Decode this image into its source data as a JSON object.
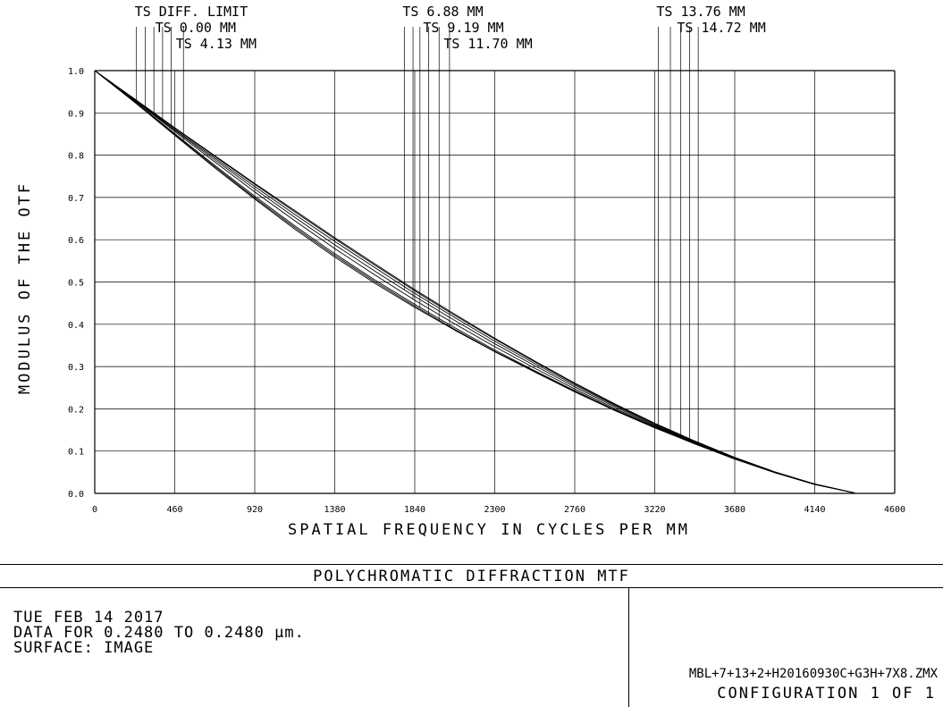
{
  "chart_data": {
    "type": "line",
    "title": "POLYCHROMATIC DIFFRACTION MTF",
    "xlabel": "SPATIAL FREQUENCY IN CYCLES PER MM",
    "ylabel": "MODULUS OF THE OTF",
    "xlim": [
      0,
      4600
    ],
    "ylim": [
      0,
      1.0
    ],
    "xticks": [
      "0",
      "460",
      "920",
      "1380",
      "1840",
      "2300",
      "2760",
      "3220",
      "3680",
      "4140",
      "4600"
    ],
    "yticks": [
      "0.0",
      "0.1",
      "0.2",
      "0.3",
      "0.4",
      "0.5",
      "0.6",
      "0.7",
      "0.8",
      "0.9",
      "1.0"
    ],
    "grid": true,
    "x": [
      0,
      230,
      460,
      690,
      920,
      1150,
      1380,
      1610,
      1840,
      2070,
      2300,
      2530,
      2760,
      2990,
      3220,
      3450,
      3680,
      3910,
      4140,
      4370
    ],
    "series": [
      {
        "name": "TS DIFF. LIMIT",
        "values": [
          1.0,
          0.933,
          0.865,
          0.799,
          0.733,
          0.669,
          0.605,
          0.543,
          0.482,
          0.424,
          0.367,
          0.313,
          0.261,
          0.212,
          0.166,
          0.124,
          0.085,
          0.051,
          0.022,
          0.001
        ]
      },
      {
        "name": "TS 0.00 MM",
        "values": [
          1.0,
          0.932,
          0.864,
          0.797,
          0.731,
          0.666,
          0.602,
          0.54,
          0.479,
          0.421,
          0.365,
          0.311,
          0.259,
          0.21,
          0.165,
          0.123,
          0.085,
          0.051,
          0.022,
          0.001
        ]
      },
      {
        "name": "TS 4.13 MM",
        "values": [
          1.0,
          0.931,
          0.861,
          0.793,
          0.726,
          0.66,
          0.596,
          0.534,
          0.473,
          0.416,
          0.36,
          0.307,
          0.256,
          0.208,
          0.163,
          0.122,
          0.084,
          0.05,
          0.022,
          0.001
        ]
      },
      {
        "name": "TS 6.88 MM",
        "values": [
          1.0,
          0.93,
          0.859,
          0.789,
          0.72,
          0.653,
          0.588,
          0.526,
          0.466,
          0.409,
          0.354,
          0.302,
          0.252,
          0.205,
          0.161,
          0.121,
          0.084,
          0.05,
          0.022,
          0.001
        ]
      },
      {
        "name": "TS 9.19 MM",
        "values": [
          1.0,
          0.929,
          0.856,
          0.784,
          0.713,
          0.645,
          0.579,
          0.517,
          0.457,
          0.401,
          0.347,
          0.296,
          0.247,
          0.201,
          0.159,
          0.12,
          0.083,
          0.05,
          0.022,
          0.001
        ]
      },
      {
        "name": "TS 11.70 MM",
        "values": [
          1.0,
          0.927,
          0.851,
          0.776,
          0.703,
          0.633,
          0.567,
          0.505,
          0.447,
          0.392,
          0.339,
          0.29,
          0.243,
          0.198,
          0.157,
          0.119,
          0.083,
          0.05,
          0.022,
          0.001
        ]
      },
      {
        "name": "TS 13.76 MM",
        "values": [
          1.0,
          0.926,
          0.849,
          0.773,
          0.699,
          0.629,
          0.563,
          0.501,
          0.443,
          0.388,
          0.336,
          0.288,
          0.241,
          0.197,
          0.156,
          0.118,
          0.082,
          0.049,
          0.021,
          0.001
        ]
      },
      {
        "name": "TS 14.72 MM",
        "values": [
          1.0,
          0.925,
          0.847,
          0.77,
          0.696,
          0.625,
          0.559,
          0.497,
          0.44,
          0.386,
          0.335,
          0.287,
          0.24,
          0.196,
          0.155,
          0.117,
          0.081,
          0.049,
          0.021,
          0.001
        ]
      }
    ],
    "legend_groups": [
      {
        "labels": [
          "TS DIFF. LIMIT",
          "TS 0.00 MM",
          "TS 4.13 MM"
        ],
        "leader_x": [
          240,
          290,
          340,
          390,
          440,
          510
        ]
      },
      {
        "labels": [
          "TS 6.88 MM",
          "TS 9.19 MM",
          "TS 11.70 MM"
        ],
        "leader_x": [
          1780,
          1830,
          1870,
          1920,
          1980,
          2040
        ]
      },
      {
        "labels": [
          "TS 13.76 MM",
          "TS 14.72 MM"
        ],
        "leader_x": [
          3240,
          3310,
          3370,
          3420,
          3470
        ]
      }
    ]
  },
  "footer": {
    "date": "TUE FEB 14 2017",
    "data_range": "DATA FOR 0.2480 TO 0.2480 µm.",
    "surface": "SURFACE: IMAGE",
    "file_name": "MBL+7+13+2+H20160930C+G3H+7X8.ZMX",
    "configuration": "CONFIGURATION 1 OF 1"
  }
}
